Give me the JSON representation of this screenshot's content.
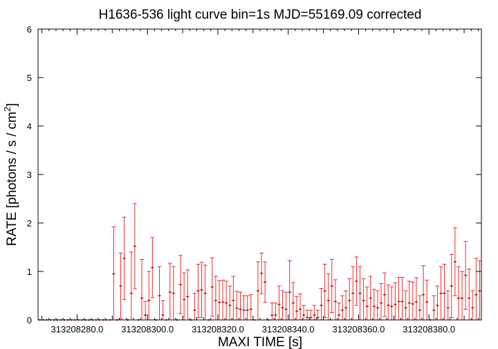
{
  "chart_data": {
    "type": "scatter",
    "title": "H1636-536 light curve bin=1s MJD=55169.09 corrected",
    "xlabel": "MAXI TIME [s]",
    "ylabel_main": "RATE [photons / s / cm",
    "ylabel_sup": "2",
    "ylabel_close": "]",
    "xlim": [
      313208268.9,
      313208394.9
    ],
    "ylim": [
      0,
      6
    ],
    "x_ticks": [
      313208280.0,
      313208300.0,
      313208320.0,
      313208340.0,
      313208360.0,
      313208380.0
    ],
    "x_tick_labels": [
      "313208280.0",
      "313208300.0",
      "313208320.0",
      "313208340.0",
      "313208360.0",
      "313208380.0"
    ],
    "y_ticks": [
      0,
      1,
      2,
      3,
      4,
      5,
      6
    ],
    "y_tick_labels": [
      "0",
      "1",
      "2",
      "3",
      "4",
      "5",
      "6"
    ],
    "grid": false,
    "series": [
      {
        "color": "#e03030",
        "bin_width": 1,
        "x": [
          313208269.4,
          313208270.4,
          313208271.4,
          313208272.4,
          313208273.4,
          313208274.4,
          313208275.4,
          313208276.4,
          313208277.4,
          313208278.4,
          313208279.4,
          313208280.4,
          313208281.4,
          313208282.4,
          313208283.4,
          313208284.4,
          313208285.4,
          313208286.4,
          313208287.4,
          313208288.4,
          313208289.4,
          313208290.4,
          313208291.4,
          313208292.4,
          313208293.4,
          313208294.4,
          313208295.4,
          313208296.4,
          313208297.4,
          313208298.4,
          313208299.4,
          313208300.4,
          313208301.4,
          313208302.4,
          313208303.4,
          313208304.4,
          313208305.4,
          313208306.4,
          313208307.4,
          313208308.4,
          313208309.4,
          313208310.4,
          313208311.4,
          313208312.4,
          313208313.4,
          313208314.4,
          313208315.4,
          313208316.4,
          313208317.4,
          313208318.4,
          313208319.4,
          313208320.4,
          313208321.4,
          313208322.4,
          313208323.4,
          313208324.4,
          313208325.4,
          313208326.4,
          313208327.4,
          313208328.4,
          313208329.4,
          313208330.4,
          313208331.4,
          313208332.4,
          313208333.4,
          313208334.4,
          313208335.4,
          313208336.4,
          313208337.4,
          313208338.4,
          313208339.4,
          313208340.4,
          313208341.4,
          313208342.4,
          313208343.4,
          313208344.4,
          313208345.4,
          313208346.4,
          313208347.4,
          313208348.4,
          313208349.4,
          313208350.4,
          313208351.4,
          313208352.4,
          313208353.4,
          313208354.4,
          313208355.4,
          313208356.4,
          313208357.4,
          313208358.4,
          313208359.4,
          313208360.4,
          313208361.4,
          313208362.4,
          313208363.4,
          313208364.4,
          313208365.4,
          313208366.4,
          313208367.4,
          313208368.4,
          313208369.4,
          313208370.4,
          313208371.4,
          313208372.4,
          313208373.4,
          313208374.4,
          313208375.4,
          313208376.4,
          313208377.4,
          313208378.4,
          313208379.4,
          313208380.4,
          313208381.4,
          313208382.4,
          313208383.4,
          313208384.4,
          313208385.4,
          313208386.4,
          313208387.4,
          313208388.4,
          313208389.4,
          313208390.4,
          313208391.4,
          313208392.4,
          313208393.4,
          313208394.4
        ],
        "y": [
          0,
          0,
          0,
          0,
          0,
          0,
          0,
          0,
          0,
          0,
          0,
          0,
          0,
          0,
          0,
          0,
          0,
          0,
          0,
          0,
          0,
          0.95,
          0,
          0.7,
          1.27,
          0,
          0.55,
          1.52,
          0,
          0.45,
          0.1,
          0.4,
          1.08,
          0,
          0.5,
          0.1,
          0,
          0.57,
          0.55,
          0,
          0.73,
          0.42,
          0.48,
          0,
          0.2,
          0.6,
          0.62,
          0.55,
          0,
          0.68,
          0.4,
          0.36,
          0.37,
          0.35,
          0.3,
          0.4,
          0.24,
          0.22,
          0.2,
          0.2,
          0.22,
          0,
          0.6,
          0.96,
          0.78,
          0,
          0.1,
          0.1,
          0.32,
          0.25,
          0.22,
          0.57,
          0.35,
          0.18,
          0.22,
          0.1,
          0.05,
          0.05,
          0.1,
          0.05,
          0.3,
          0.6,
          0.4,
          0.7,
          0.38,
          0.1,
          0.2,
          0.25,
          0.4,
          0.55,
          0.8,
          0.55,
          0.4,
          0.28,
          0.45,
          0.28,
          0.25,
          0.35,
          0.52,
          0.3,
          0.28,
          0.32,
          0.38,
          0.38,
          0.25,
          0.35,
          0.33,
          0.37,
          0.2,
          0.52,
          0.37,
          0,
          0.2,
          0.3,
          0.55,
          0.55,
          0.25,
          0.7,
          1.2,
          0.45,
          0.45,
          0.92,
          0.45,
          0.25,
          0.52,
          0.6
        ],
        "err": [
          0,
          0,
          0,
          0,
          0,
          0,
          0,
          0,
          0,
          0,
          0,
          0,
          0,
          0,
          0,
          0,
          0,
          0,
          0,
          0,
          0,
          0.97,
          0,
          0.68,
          0.85,
          0,
          0.85,
          0.88,
          0,
          0.8,
          0.28,
          0.6,
          0.62,
          0,
          0.6,
          0.3,
          0,
          0.6,
          0.55,
          0,
          0.6,
          0.55,
          0.55,
          0,
          0.35,
          0.55,
          0.57,
          0.58,
          0,
          0.6,
          0.5,
          0.45,
          0.45,
          0.45,
          0.4,
          0.5,
          0.35,
          0.35,
          0.3,
          0.3,
          0.3,
          0,
          0.6,
          0.42,
          0.42,
          0,
          0.25,
          0.25,
          0.38,
          0.35,
          0.35,
          0.65,
          0.42,
          0.3,
          0.32,
          0.2,
          0.15,
          0.15,
          0.2,
          0.15,
          0.35,
          0.55,
          0.55,
          0.55,
          0.45,
          0.25,
          0.3,
          0.35,
          0.45,
          0.55,
          0.5,
          0.55,
          0.45,
          0.4,
          0.45,
          0.35,
          0.35,
          0.4,
          0.45,
          0.42,
          0.4,
          0.45,
          0.5,
          0.5,
          0.35,
          0.45,
          0.45,
          0.5,
          0.3,
          0.6,
          0.45,
          0,
          0.3,
          0.4,
          0.55,
          0.6,
          0.35,
          0.65,
          0.7,
          0.65,
          0.55,
          0.7,
          0.6,
          0.35,
          0.75,
          0.62
        ]
      }
    ]
  }
}
